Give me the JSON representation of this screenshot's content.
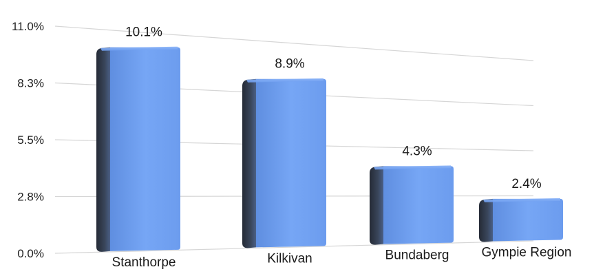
{
  "chart_data": {
    "type": "bar",
    "categories": [
      "Stanthorpe",
      "Kilkivan",
      "Bundaberg",
      "Gympie Region"
    ],
    "values": [
      10.1,
      8.9,
      4.3,
      2.4
    ],
    "data_labels": [
      "10.1%",
      "8.9%",
      "4.3%",
      "2.4%"
    ],
    "y_ticks": [
      "0.0%",
      "2.8%",
      "5.5%",
      "8.3%",
      "11.0%"
    ],
    "ylim": [
      0,
      11.0
    ],
    "grid": true,
    "legend": "none",
    "style": "3d-perspective",
    "colors": {
      "bar_face": "#6e9ef0",
      "bar_side": "#2c3442",
      "grid": "#d6d6d6"
    }
  }
}
